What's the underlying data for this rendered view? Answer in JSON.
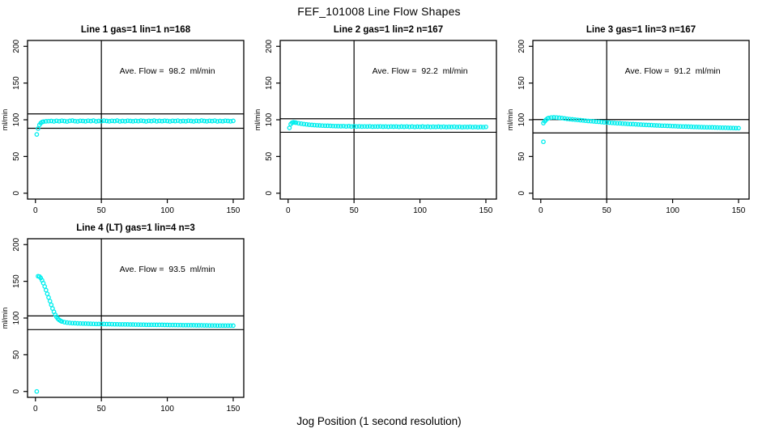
{
  "page": {
    "main_title": "FEF_101008  Line Flow Shapes",
    "shared_xlabel": "Jog Position (1 second resolution)"
  },
  "chart_data": [
    {
      "type": "scatter",
      "name": "line-1",
      "title": "Line 1 gas=1 lin=1 n=168",
      "annotation": "Ave. Flow =  98.2  ml/min",
      "ave_flow_ml_min": 98.2,
      "gas": 1,
      "lin": 1,
      "n": 168,
      "ylabel": "ml/min",
      "xlim": [
        -6,
        158
      ],
      "ylim": [
        -8,
        208
      ],
      "xticks": [
        0,
        50,
        100,
        150
      ],
      "yticks": [
        0,
        50,
        100,
        150,
        200
      ],
      "hlines": [
        108.0,
        88.4
      ],
      "vlines": [
        50
      ],
      "point_color": "#00EEEE",
      "points": [
        [
          1,
          80
        ],
        [
          2,
          88
        ],
        [
          3,
          93
        ],
        [
          4,
          95.5
        ],
        [
          5,
          96.8
        ],
        [
          6,
          97.4
        ],
        [
          8,
          97.9
        ],
        [
          10,
          98.1
        ],
        [
          12,
          98.4
        ],
        [
          14,
          97.8
        ],
        [
          16,
          98.6
        ],
        [
          18,
          98
        ],
        [
          20,
          98.7
        ],
        [
          22,
          98.2
        ],
        [
          24,
          97.7
        ],
        [
          26,
          98.5
        ],
        [
          28,
          98.9
        ],
        [
          30,
          98.1
        ],
        [
          32,
          97.8
        ],
        [
          34,
          98.6
        ],
        [
          36,
          98.3
        ],
        [
          38,
          97.9
        ],
        [
          40,
          98.7
        ],
        [
          42,
          98.2
        ],
        [
          44,
          98.9
        ],
        [
          46,
          97.8
        ],
        [
          48,
          98.4
        ],
        [
          50,
          98.1
        ],
        [
          52,
          98.8
        ],
        [
          54,
          98.3
        ],
        [
          56,
          97.9
        ],
        [
          58,
          98.6
        ],
        [
          60,
          98.2
        ],
        [
          62,
          98.9
        ],
        [
          64,
          97.8
        ],
        [
          66,
          98.4
        ],
        [
          68,
          98
        ],
        [
          70,
          98.7
        ],
        [
          72,
          98.3
        ],
        [
          74,
          97.9
        ],
        [
          76,
          98.5
        ],
        [
          78,
          98.1
        ],
        [
          80,
          98.8
        ],
        [
          82,
          98.4
        ],
        [
          84,
          97.8
        ],
        [
          86,
          98.6
        ],
        [
          88,
          98.2
        ],
        [
          90,
          98.9
        ],
        [
          92,
          97.9
        ],
        [
          94,
          98.5
        ],
        [
          96,
          98.1
        ],
        [
          98,
          98.7
        ],
        [
          100,
          98.3
        ],
        [
          102,
          97.8
        ],
        [
          104,
          98.6
        ],
        [
          106,
          98.2
        ],
        [
          108,
          98.8
        ],
        [
          110,
          97.9
        ],
        [
          112,
          98.4
        ],
        [
          114,
          98
        ],
        [
          116,
          98.7
        ],
        [
          118,
          98.3
        ],
        [
          120,
          97.8
        ],
        [
          122,
          98.5
        ],
        [
          124,
          98.1
        ],
        [
          126,
          98.9
        ],
        [
          128,
          98.4
        ],
        [
          130,
          97.9
        ],
        [
          132,
          98.6
        ],
        [
          134,
          98.2
        ],
        [
          136,
          98.8
        ],
        [
          138,
          97.8
        ],
        [
          140,
          98.4
        ],
        [
          142,
          98
        ],
        [
          144,
          98.7
        ],
        [
          146,
          98.3
        ],
        [
          148,
          97.9
        ],
        [
          150,
          98.5
        ]
      ]
    },
    {
      "type": "scatter",
      "name": "line-2",
      "title": "Line 2 gas=1 lin=2 n=167",
      "annotation": "Ave. Flow =  92.2  ml/min",
      "ave_flow_ml_min": 92.2,
      "gas": 1,
      "lin": 2,
      "n": 167,
      "ylabel": "ml/min",
      "xlim": [
        -6,
        158
      ],
      "ylim": [
        -8,
        208
      ],
      "xticks": [
        0,
        50,
        100,
        150
      ],
      "yticks": [
        0,
        50,
        100,
        150,
        200
      ],
      "hlines": [
        101.4,
        83.0
      ],
      "vlines": [
        50
      ],
      "point_color": "#00EEEE",
      "points": [
        [
          1,
          89
        ],
        [
          2,
          94
        ],
        [
          3,
          96
        ],
        [
          4,
          96.6
        ],
        [
          5,
          96.4
        ],
        [
          6,
          96
        ],
        [
          8,
          95.3
        ],
        [
          10,
          94.7
        ],
        [
          12,
          94.2
        ],
        [
          14,
          93.7
        ],
        [
          16,
          93.3
        ],
        [
          18,
          93
        ],
        [
          20,
          92.7
        ],
        [
          22,
          92.5
        ],
        [
          24,
          92.3
        ],
        [
          26,
          92.1
        ],
        [
          28,
          92
        ],
        [
          30,
          91.8
        ],
        [
          32,
          91.7
        ],
        [
          34,
          91.5
        ],
        [
          36,
          91.4
        ],
        [
          38,
          91.3
        ],
        [
          40,
          91.2
        ],
        [
          42,
          91.4
        ],
        [
          44,
          91
        ],
        [
          46,
          91.3
        ],
        [
          48,
          90.9
        ],
        [
          50,
          91.2
        ],
        [
          52,
          90.8
        ],
        [
          54,
          91.1
        ],
        [
          56,
          90.7
        ],
        [
          58,
          91
        ],
        [
          60,
          90.8
        ],
        [
          62,
          91.1
        ],
        [
          64,
          90.6
        ],
        [
          66,
          90.9
        ],
        [
          68,
          90.7
        ],
        [
          70,
          91
        ],
        [
          72,
          90.6
        ],
        [
          74,
          90.9
        ],
        [
          76,
          90.5
        ],
        [
          78,
          90.8
        ],
        [
          80,
          90.6
        ],
        [
          82,
          90.9
        ],
        [
          84,
          90.4
        ],
        [
          86,
          90.7
        ],
        [
          88,
          90.5
        ],
        [
          90,
          90.8
        ],
        [
          92,
          90.4
        ],
        [
          94,
          90.7
        ],
        [
          96,
          90.3
        ],
        [
          98,
          90.6
        ],
        [
          100,
          90.4
        ],
        [
          102,
          90.7
        ],
        [
          104,
          90.3
        ],
        [
          106,
          90.6
        ],
        [
          108,
          90.2
        ],
        [
          110,
          90.5
        ],
        [
          112,
          90.3
        ],
        [
          114,
          90.6
        ],
        [
          116,
          90.2
        ],
        [
          118,
          90.5
        ],
        [
          120,
          90.1
        ],
        [
          122,
          90.4
        ],
        [
          124,
          90.2
        ],
        [
          126,
          90.5
        ],
        [
          128,
          90.1
        ],
        [
          130,
          90.4
        ],
        [
          132,
          90
        ],
        [
          134,
          90.3
        ],
        [
          136,
          90.1
        ],
        [
          138,
          90.4
        ],
        [
          140,
          90
        ],
        [
          142,
          90.3
        ],
        [
          144,
          89.9
        ],
        [
          146,
          90.2
        ],
        [
          148,
          90
        ],
        [
          150,
          90.3
        ]
      ]
    },
    {
      "type": "scatter",
      "name": "line-3",
      "title": "Line 3 gas=1 lin=3 n=167",
      "annotation": "Ave. Flow =  91.2  ml/min",
      "ave_flow_ml_min": 91.2,
      "gas": 1,
      "lin": 3,
      "n": 167,
      "ylabel": "ml/min",
      "xlim": [
        -6,
        158
      ],
      "ylim": [
        -8,
        208
      ],
      "xticks": [
        0,
        50,
        100,
        150
      ],
      "yticks": [
        0,
        50,
        100,
        150,
        200
      ],
      "hlines": [
        100.3,
        82.1
      ],
      "vlines": [
        50
      ],
      "point_color": "#00EEEE",
      "points": [
        [
          2,
          70
        ],
        [
          2,
          95.5
        ],
        [
          3,
          98
        ],
        [
          4,
          100
        ],
        [
          5,
          101.5
        ],
        [
          6,
          102.4
        ],
        [
          8,
          103.1
        ],
        [
          10,
          103.3
        ],
        [
          12,
          103.1
        ],
        [
          14,
          102.7
        ],
        [
          16,
          102.3
        ],
        [
          18,
          101.8
        ],
        [
          20,
          101.3
        ],
        [
          22,
          100.9
        ],
        [
          24,
          100.5
        ],
        [
          26,
          100.1
        ],
        [
          28,
          99.8
        ],
        [
          30,
          99.4
        ],
        [
          32,
          99.1
        ],
        [
          34,
          98.7
        ],
        [
          36,
          98.4
        ],
        [
          38,
          98.1
        ],
        [
          40,
          97.8
        ],
        [
          42,
          97.5
        ],
        [
          44,
          97.2
        ],
        [
          46,
          96.9
        ],
        [
          48,
          96.6
        ],
        [
          50,
          96.4
        ],
        [
          52,
          96.1
        ],
        [
          54,
          95.8
        ],
        [
          56,
          95.6
        ],
        [
          58,
          95.3
        ],
        [
          60,
          95.1
        ],
        [
          62,
          94.8
        ],
        [
          64,
          94.6
        ],
        [
          66,
          94.4
        ],
        [
          68,
          94.2
        ],
        [
          70,
          94
        ],
        [
          72,
          93.8
        ],
        [
          74,
          93.6
        ],
        [
          76,
          93.4
        ],
        [
          78,
          93.2
        ],
        [
          80,
          93
        ],
        [
          82,
          92.8
        ],
        [
          84,
          92.7
        ],
        [
          86,
          92.5
        ],
        [
          88,
          92.3
        ],
        [
          90,
          92.2
        ],
        [
          92,
          92
        ],
        [
          94,
          91.9
        ],
        [
          96,
          91.7
        ],
        [
          98,
          91.6
        ],
        [
          100,
          91.4
        ],
        [
          102,
          91.3
        ],
        [
          104,
          91.1
        ],
        [
          106,
          91
        ],
        [
          108,
          90.9
        ],
        [
          110,
          90.7
        ],
        [
          112,
          90.6
        ],
        [
          114,
          90.5
        ],
        [
          116,
          90.3
        ],
        [
          118,
          90.2
        ],
        [
          120,
          90.1
        ],
        [
          122,
          90
        ],
        [
          124,
          89.9
        ],
        [
          126,
          89.8
        ],
        [
          128,
          89.7
        ],
        [
          130,
          89.6
        ],
        [
          132,
          89.5
        ],
        [
          134,
          89.4
        ],
        [
          136,
          89.3
        ],
        [
          138,
          89.2
        ],
        [
          140,
          89.1
        ],
        [
          142,
          89
        ],
        [
          144,
          88.9
        ],
        [
          146,
          88.8
        ],
        [
          148,
          88.7
        ],
        [
          150,
          88.6
        ]
      ]
    },
    {
      "type": "scatter",
      "name": "line-4",
      "title": "Line 4 (LT) gas=1 lin=4 n=3",
      "annotation": "Ave. Flow =  93.5  ml/min",
      "ave_flow_ml_min": 93.5,
      "gas": 1,
      "lin": 4,
      "n": 3,
      "ylabel": "ml/min",
      "xlim": [
        -6,
        158
      ],
      "ylim": [
        -8,
        208
      ],
      "xticks": [
        0,
        50,
        100,
        150
      ],
      "yticks": [
        0,
        50,
        100,
        150,
        200
      ],
      "hlines": [
        102.9,
        84.2
      ],
      "vlines": [
        50
      ],
      "point_color": "#00EEEE",
      "points": [
        [
          1,
          0
        ],
        [
          2,
          157
        ],
        [
          3,
          156.5
        ],
        [
          4,
          154.5
        ],
        [
          5,
          151.5
        ],
        [
          6,
          147.5
        ],
        [
          7,
          143
        ],
        [
          8,
          138
        ],
        [
          9,
          133
        ],
        [
          10,
          128
        ],
        [
          11,
          123
        ],
        [
          12,
          118
        ],
        [
          13,
          113
        ],
        [
          14,
          108.5
        ],
        [
          15,
          104.5
        ],
        [
          16,
          101.5
        ],
        [
          17,
          99.2
        ],
        [
          18,
          97.5
        ],
        [
          19,
          96.3
        ],
        [
          20,
          95.4
        ],
        [
          22,
          94.4
        ],
        [
          24,
          93.8
        ],
        [
          26,
          93.4
        ],
        [
          28,
          93.1
        ],
        [
          30,
          92.9
        ],
        [
          32,
          92.7
        ],
        [
          34,
          92.6
        ],
        [
          36,
          92.5
        ],
        [
          38,
          92.4
        ],
        [
          40,
          92.3
        ],
        [
          42,
          92.2
        ],
        [
          44,
          92.1
        ],
        [
          46,
          92
        ],
        [
          48,
          91.9
        ],
        [
          50,
          91.9
        ],
        [
          52,
          91.8
        ],
        [
          54,
          91.7
        ],
        [
          56,
          91.7
        ],
        [
          58,
          91.6
        ],
        [
          60,
          91.5
        ],
        [
          62,
          91.5
        ],
        [
          64,
          91.4
        ],
        [
          66,
          91.4
        ],
        [
          68,
          91.3
        ],
        [
          70,
          91.3
        ],
        [
          72,
          91.2
        ],
        [
          74,
          91.2
        ],
        [
          76,
          91.1
        ],
        [
          78,
          91.1
        ],
        [
          80,
          91
        ],
        [
          82,
          91
        ],
        [
          84,
          90.9
        ],
        [
          86,
          90.9
        ],
        [
          88,
          90.8
        ],
        [
          90,
          90.8
        ],
        [
          92,
          90.7
        ],
        [
          94,
          90.7
        ],
        [
          96,
          90.7
        ],
        [
          98,
          90.6
        ],
        [
          100,
          90.6
        ],
        [
          102,
          90.5
        ],
        [
          104,
          90.5
        ],
        [
          106,
          90.5
        ],
        [
          108,
          90.4
        ],
        [
          110,
          90.4
        ],
        [
          112,
          90.3
        ],
        [
          114,
          90.3
        ],
        [
          116,
          90.3
        ],
        [
          118,
          90.2
        ],
        [
          120,
          90.2
        ],
        [
          122,
          90.1
        ],
        [
          124,
          90.1
        ],
        [
          126,
          90.1
        ],
        [
          128,
          90
        ],
        [
          130,
          90
        ],
        [
          132,
          89.9
        ],
        [
          134,
          89.9
        ],
        [
          136,
          89.9
        ],
        [
          138,
          89.8
        ],
        [
          140,
          89.8
        ],
        [
          142,
          89.8
        ],
        [
          144,
          89.7
        ],
        [
          146,
          89.7
        ],
        [
          148,
          89.7
        ],
        [
          150,
          89.6
        ]
      ]
    }
  ]
}
